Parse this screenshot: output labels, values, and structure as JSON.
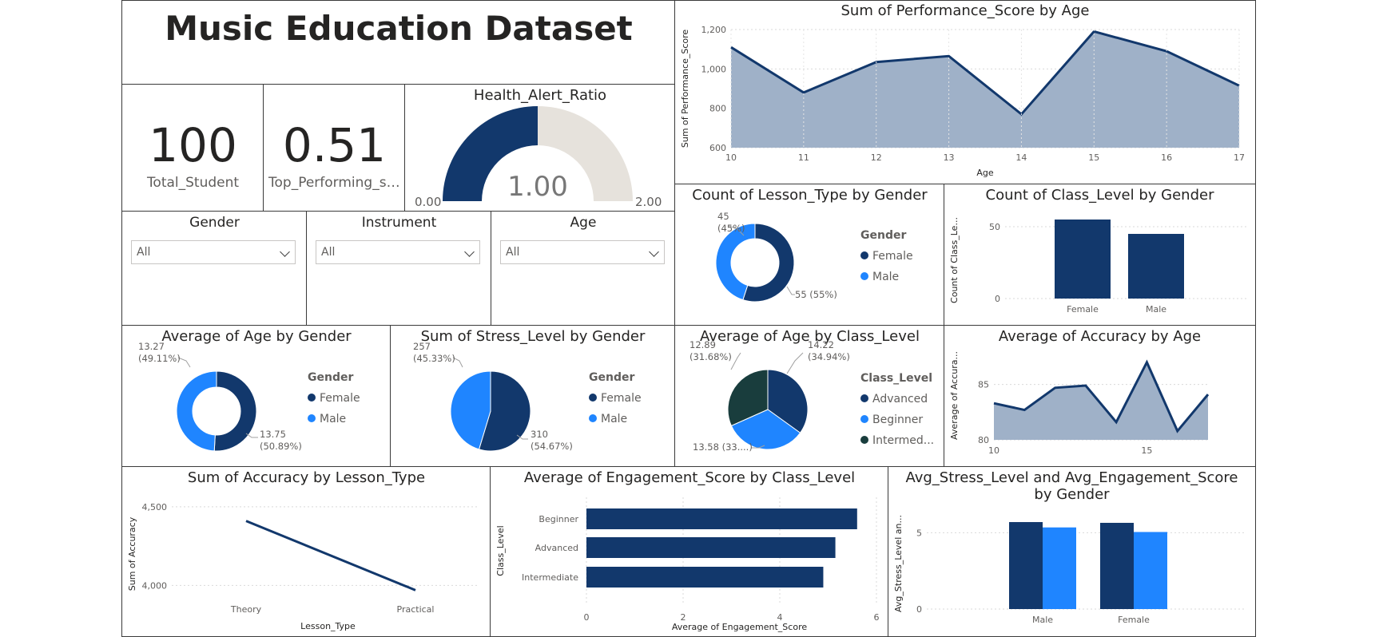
{
  "dashboard": {
    "title": "Music Education Dataset",
    "kpis": [
      {
        "value": "100",
        "label": "Total_Student"
      },
      {
        "value": "0.51",
        "label": "Top_Performing_st..."
      }
    ],
    "gauge": {
      "title": "Health_Alert_Ratio",
      "value": "1.00",
      "min": "0.00",
      "max": "2.00",
      "fraction": 0.5
    },
    "slicers": [
      {
        "label": "Gender",
        "value": "All"
      },
      {
        "label": "Instrument",
        "value": "All"
      },
      {
        "label": "Age",
        "value": "All"
      }
    ],
    "colors": {
      "dark": "#12386c",
      "light": "#1f85ff",
      "teal": "#193d3d",
      "area": "#9fb1c8",
      "gauge_bg": "#e6e2dc"
    }
  },
  "chart_data": [
    {
      "id": "perf_by_age",
      "type": "area",
      "title": "Sum of Performance_Score by Age",
      "xlabel": "Age",
      "ylabel": "Sum of Performance_Score",
      "x": [
        10,
        11,
        12,
        13,
        14,
        15,
        16,
        17
      ],
      "values": [
        1110,
        880,
        1035,
        1065,
        770,
        1190,
        1090,
        915
      ],
      "ylim": [
        600,
        1200
      ],
      "yticks": [
        "600",
        "800",
        "1,000",
        "1,200"
      ],
      "xticks": [
        "10",
        "11",
        "12",
        "13",
        "14",
        "15",
        "16",
        "17"
      ]
    },
    {
      "id": "lesson_by_gender",
      "type": "pie",
      "title": "Count of Lesson_Type by Gender",
      "legend_title": "Gender",
      "categories": [
        "Female",
        "Male"
      ],
      "values": [
        55,
        45
      ],
      "labels": [
        "55 (55%)",
        "45 (45%)"
      ]
    },
    {
      "id": "class_by_gender",
      "type": "bar",
      "title": "Count of Class_Level by Gender",
      "ylabel": "Count of Class_Le...",
      "categories": [
        "Female",
        "Male"
      ],
      "values": [
        55,
        45
      ],
      "ylim": [
        0,
        60
      ],
      "yticks": [
        "0",
        "50"
      ]
    },
    {
      "id": "age_by_gender",
      "type": "pie",
      "title": "Average of Age by Gender",
      "legend_title": "Gender",
      "categories": [
        "Female",
        "Male"
      ],
      "values": [
        13.75,
        13.27
      ],
      "labels": [
        "13.75 (50.89%)",
        "13.27 (49.11%)"
      ]
    },
    {
      "id": "stress_by_gender",
      "type": "pie",
      "title": "Sum of Stress_Level by Gender",
      "legend_title": "Gender",
      "categories": [
        "Female",
        "Male"
      ],
      "values": [
        310,
        257
      ],
      "labels": [
        "310 (54.67%)",
        "257 (45.33%)"
      ]
    },
    {
      "id": "age_by_class",
      "type": "pie",
      "title": "Average of Age by Class_Level",
      "legend_title": "Class_Level",
      "categories": [
        "Advanced",
        "Beginner",
        "Intermed..."
      ],
      "values": [
        14.22,
        13.58,
        12.89
      ],
      "labels": [
        "14.22 (34.94%)",
        "13.58 (33....)",
        "12.89 (31.68%)"
      ]
    },
    {
      "id": "acc_by_age",
      "type": "area",
      "title": "Average of Accuracy by Age",
      "ylabel": "Average of Accura...",
      "x": [
        10,
        11,
        12,
        13,
        14,
        15,
        16,
        17
      ],
      "values": [
        83.3,
        82.7,
        84.7,
        84.9,
        81.6,
        87.0,
        80.8,
        84.1
      ],
      "ylim": [
        80,
        88
      ],
      "yticks": [
        "80",
        "85"
      ],
      "xticks": [
        "10",
        "15"
      ]
    },
    {
      "id": "acc_by_lesson",
      "type": "line",
      "title": "Sum of Accuracy by Lesson_Type",
      "xlabel": "Lesson_Type",
      "ylabel": "Sum of Accuracy",
      "categories": [
        "Theory",
        "Practical"
      ],
      "values": [
        4410,
        3970
      ],
      "ylim": [
        3850,
        4550
      ],
      "yticks": [
        "4,000",
        "4,500"
      ]
    },
    {
      "id": "eng_by_class",
      "type": "bar",
      "title": "Average of Engagement_Score by Class_Level",
      "xlabel": "Average of Engagement_Score",
      "ylabel": "Class_Level",
      "categories": [
        "Beginner",
        "Advanced",
        "Intermediate"
      ],
      "values": [
        5.6,
        5.15,
        4.9
      ],
      "xlim": [
        0,
        6
      ],
      "xticks": [
        "0",
        "2",
        "4",
        "6"
      ]
    },
    {
      "id": "stress_eng_by_gender",
      "type": "bar",
      "title": "Avg_Stress_Level and Avg_Engagement_Score by Gender",
      "ylabel": "Avg_Stress_Level an...",
      "categories": [
        "Male",
        "Female"
      ],
      "series": [
        {
          "values": [
            5.7,
            5.65
          ]
        },
        {
          "values": [
            5.35,
            5.05
          ]
        }
      ],
      "ylim": [
        0,
        6.8
      ],
      "yticks": [
        "0",
        "5"
      ]
    }
  ]
}
